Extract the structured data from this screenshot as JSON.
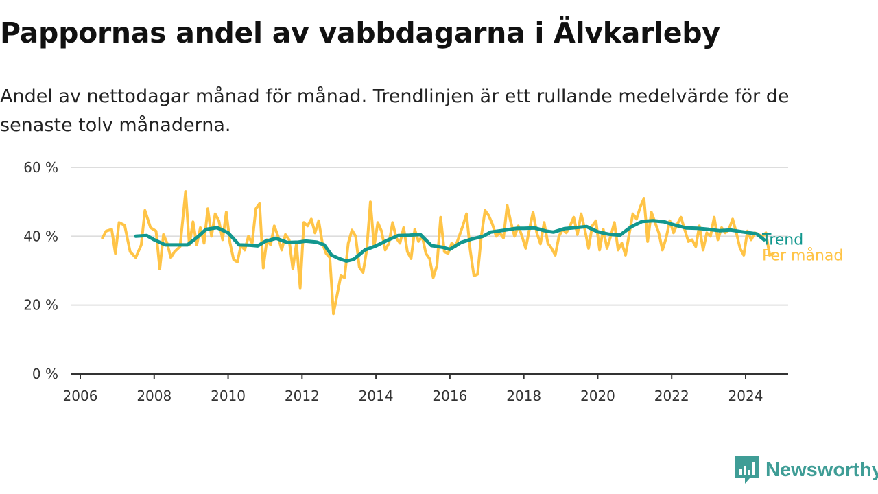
{
  "title": "Pappornas andel av vabbdagarna i Älvkarleby",
  "subtitle": "Andel av nettodagar månad för månad. Trendlinjen är ett rullande medelvärde för de senaste tolv månaderna.",
  "brand": {
    "name": "Newsworthy",
    "color": "#3f9d96"
  },
  "chart_data": {
    "type": "line",
    "title": "Pappornas andel av vabbdagarna i Älvkarleby",
    "xlabel": "",
    "ylabel": "",
    "x_range": [
      2006.0,
      2025.2
    ],
    "ylim": [
      0,
      60
    ],
    "y_ticks": [
      0,
      20,
      40,
      60
    ],
    "y_tick_labels": [
      "0 %",
      "20 %",
      "40 %",
      "60 %"
    ],
    "x_ticks": [
      2006,
      2008,
      2010,
      2012,
      2014,
      2016,
      2018,
      2020,
      2022,
      2024
    ],
    "x_tick_labels": [
      "2006",
      "2008",
      "2010",
      "2012",
      "2014",
      "2016",
      "2018",
      "2020",
      "2022",
      "2024"
    ],
    "grid": true,
    "legend": "end-of-line labels, right",
    "series": [
      {
        "name": "Trend",
        "color": "#12978e",
        "points": [
          [
            2007.5,
            40
          ],
          [
            2007.8,
            40.2
          ],
          [
            2008.0,
            39
          ],
          [
            2008.3,
            37.5
          ],
          [
            2008.6,
            37.5
          ],
          [
            2008.9,
            37.5
          ],
          [
            2009.2,
            40
          ],
          [
            2009.4,
            42
          ],
          [
            2009.7,
            42.5
          ],
          [
            2010.0,
            41
          ],
          [
            2010.3,
            37.5
          ],
          [
            2010.6,
            37.4
          ],
          [
            2010.8,
            37.2
          ],
          [
            2011.0,
            38.5
          ],
          [
            2011.3,
            39.4
          ],
          [
            2011.6,
            38.2
          ],
          [
            2011.9,
            38.3
          ],
          [
            2012.1,
            38.6
          ],
          [
            2012.4,
            38.3
          ],
          [
            2012.6,
            37.5
          ],
          [
            2012.8,
            34.5
          ],
          [
            2013.0,
            33.5
          ],
          [
            2013.2,
            32.8
          ],
          [
            2013.4,
            33.3
          ],
          [
            2013.7,
            36
          ],
          [
            2014.0,
            37.2
          ],
          [
            2014.3,
            38.8
          ],
          [
            2014.6,
            40.2
          ],
          [
            2014.9,
            40.3
          ],
          [
            2015.2,
            40.5
          ],
          [
            2015.5,
            37.3
          ],
          [
            2015.8,
            36.8
          ],
          [
            2016.0,
            36.2
          ],
          [
            2016.3,
            38.2
          ],
          [
            2016.6,
            39.2
          ],
          [
            2016.9,
            40
          ],
          [
            2017.1,
            41.2
          ],
          [
            2017.5,
            41.8
          ],
          [
            2017.8,
            42.3
          ],
          [
            2018.0,
            42.3
          ],
          [
            2018.3,
            42.4
          ],
          [
            2018.6,
            41.5
          ],
          [
            2018.8,
            41.2
          ],
          [
            2019.1,
            42.2
          ],
          [
            2019.4,
            42.5
          ],
          [
            2019.7,
            42.8
          ],
          [
            2020.0,
            41.3
          ],
          [
            2020.3,
            40.6
          ],
          [
            2020.6,
            40.3
          ],
          [
            2020.9,
            42.7
          ],
          [
            2021.2,
            44.3
          ],
          [
            2021.5,
            44.5
          ],
          [
            2021.8,
            44.2
          ],
          [
            2022.1,
            43.2
          ],
          [
            2022.4,
            42.4
          ],
          [
            2022.7,
            42.3
          ],
          [
            2023.0,
            42
          ],
          [
            2023.3,
            41.6
          ],
          [
            2023.6,
            41.8
          ],
          [
            2023.9,
            41.3
          ],
          [
            2024.1,
            41
          ],
          [
            2024.3,
            40.7
          ],
          [
            2024.5,
            39
          ]
        ]
      },
      {
        "name": "Per månad",
        "color": "#ffc447",
        "points": [
          [
            2006.6,
            39.5
          ],
          [
            2006.7,
            41.5
          ],
          [
            2006.85,
            42
          ],
          [
            2006.95,
            35
          ],
          [
            2007.05,
            44
          ],
          [
            2007.2,
            43.2
          ],
          [
            2007.35,
            35.5
          ],
          [
            2007.5,
            33.8
          ],
          [
            2007.65,
            37.5
          ],
          [
            2007.75,
            47.5
          ],
          [
            2007.9,
            42.5
          ],
          [
            2008.05,
            41.5
          ],
          [
            2008.15,
            30.5
          ],
          [
            2008.25,
            40.5
          ],
          [
            2008.35,
            38
          ],
          [
            2008.45,
            33.8
          ],
          [
            2008.55,
            35.5
          ],
          [
            2008.7,
            37
          ],
          [
            2008.85,
            53
          ],
          [
            2008.95,
            37.5
          ],
          [
            2009.05,
            44.2
          ],
          [
            2009.15,
            37.5
          ],
          [
            2009.25,
            42.5
          ],
          [
            2009.35,
            38
          ],
          [
            2009.45,
            48
          ],
          [
            2009.55,
            40
          ],
          [
            2009.65,
            46.5
          ],
          [
            2009.75,
            44.5
          ],
          [
            2009.85,
            39
          ],
          [
            2009.95,
            47
          ],
          [
            2010.05,
            38.2
          ],
          [
            2010.15,
            33.2
          ],
          [
            2010.25,
            32.5
          ],
          [
            2010.35,
            37.5
          ],
          [
            2010.45,
            36
          ],
          [
            2010.55,
            40
          ],
          [
            2010.65,
            38
          ],
          [
            2010.75,
            48
          ],
          [
            2010.85,
            49.5
          ],
          [
            2010.95,
            30.8
          ],
          [
            2011.05,
            39
          ],
          [
            2011.15,
            37.5
          ],
          [
            2011.25,
            43
          ],
          [
            2011.35,
            40
          ],
          [
            2011.45,
            36
          ],
          [
            2011.55,
            40.5
          ],
          [
            2011.65,
            39
          ],
          [
            2011.75,
            30.5
          ],
          [
            2011.85,
            38
          ],
          [
            2011.95,
            25
          ],
          [
            2012.05,
            44
          ],
          [
            2012.15,
            43
          ],
          [
            2012.25,
            45
          ],
          [
            2012.35,
            41
          ],
          [
            2012.45,
            44.5
          ],
          [
            2012.55,
            38
          ],
          [
            2012.65,
            35
          ],
          [
            2012.75,
            33.8
          ],
          [
            2012.85,
            17.5
          ],
          [
            2012.95,
            23
          ],
          [
            2013.05,
            28.5
          ],
          [
            2013.15,
            28
          ],
          [
            2013.25,
            38
          ],
          [
            2013.35,
            41.8
          ],
          [
            2013.45,
            40
          ],
          [
            2013.55,
            31
          ],
          [
            2013.65,
            29.5
          ],
          [
            2013.75,
            36
          ],
          [
            2013.85,
            50
          ],
          [
            2013.95,
            37
          ],
          [
            2014.05,
            44
          ],
          [
            2014.15,
            41.5
          ],
          [
            2014.25,
            36
          ],
          [
            2014.35,
            38
          ],
          [
            2014.45,
            44
          ],
          [
            2014.55,
            39.5
          ],
          [
            2014.65,
            38
          ],
          [
            2014.75,
            42.5
          ],
          [
            2014.85,
            35.5
          ],
          [
            2014.95,
            33.5
          ],
          [
            2015.05,
            42
          ],
          [
            2015.15,
            38.5
          ],
          [
            2015.25,
            40
          ],
          [
            2015.35,
            35
          ],
          [
            2015.45,
            33.5
          ],
          [
            2015.55,
            28
          ],
          [
            2015.65,
            31.5
          ],
          [
            2015.75,
            45.5
          ],
          [
            2015.85,
            35.5
          ],
          [
            2015.95,
            35
          ],
          [
            2016.05,
            38
          ],
          [
            2016.15,
            37
          ],
          [
            2016.25,
            40
          ],
          [
            2016.35,
            43
          ],
          [
            2016.45,
            46.5
          ],
          [
            2016.55,
            36
          ],
          [
            2016.65,
            28.5
          ],
          [
            2016.75,
            29
          ],
          [
            2016.85,
            40
          ],
          [
            2016.95,
            47.5
          ],
          [
            2017.05,
            46
          ],
          [
            2017.15,
            43.5
          ],
          [
            2017.25,
            40
          ],
          [
            2017.35,
            41
          ],
          [
            2017.45,
            39.5
          ],
          [
            2017.55,
            49
          ],
          [
            2017.65,
            44
          ],
          [
            2017.75,
            40
          ],
          [
            2017.85,
            43
          ],
          [
            2017.95,
            40
          ],
          [
            2018.05,
            36.5
          ],
          [
            2018.15,
            42
          ],
          [
            2018.25,
            47
          ],
          [
            2018.35,
            41
          ],
          [
            2018.45,
            37.8
          ],
          [
            2018.55,
            44
          ],
          [
            2018.65,
            38
          ],
          [
            2018.75,
            36.5
          ],
          [
            2018.85,
            34.5
          ],
          [
            2018.95,
            40
          ],
          [
            2019.05,
            42
          ],
          [
            2019.15,
            41
          ],
          [
            2019.25,
            43
          ],
          [
            2019.35,
            45.5
          ],
          [
            2019.45,
            40.5
          ],
          [
            2019.55,
            46.5
          ],
          [
            2019.65,
            42
          ],
          [
            2019.75,
            36.5
          ],
          [
            2019.85,
            43
          ],
          [
            2019.95,
            44.5
          ],
          [
            2020.05,
            36
          ],
          [
            2020.15,
            42
          ],
          [
            2020.25,
            36.5
          ],
          [
            2020.35,
            40
          ],
          [
            2020.45,
            44
          ],
          [
            2020.55,
            36
          ],
          [
            2020.65,
            38
          ],
          [
            2020.75,
            34.5
          ],
          [
            2020.85,
            40.5
          ],
          [
            2020.95,
            46.5
          ],
          [
            2021.05,
            45
          ],
          [
            2021.15,
            48.5
          ],
          [
            2021.25,
            51
          ],
          [
            2021.35,
            38.5
          ],
          [
            2021.45,
            47
          ],
          [
            2021.55,
            44
          ],
          [
            2021.65,
            41
          ],
          [
            2021.75,
            36
          ],
          [
            2021.85,
            39.5
          ],
          [
            2021.95,
            44.5
          ],
          [
            2022.05,
            41
          ],
          [
            2022.15,
            43.5
          ],
          [
            2022.25,
            45.5
          ],
          [
            2022.35,
            42
          ],
          [
            2022.45,
            38.5
          ],
          [
            2022.55,
            39
          ],
          [
            2022.65,
            37
          ],
          [
            2022.75,
            43
          ],
          [
            2022.85,
            36
          ],
          [
            2022.95,
            41
          ],
          [
            2023.05,
            40
          ],
          [
            2023.15,
            45.5
          ],
          [
            2023.25,
            39
          ],
          [
            2023.35,
            42.5
          ],
          [
            2023.45,
            41
          ],
          [
            2023.55,
            42
          ],
          [
            2023.65,
            45
          ],
          [
            2023.75,
            41
          ],
          [
            2023.85,
            36.5
          ],
          [
            2023.95,
            34.5
          ],
          [
            2024.05,
            41.5
          ],
          [
            2024.15,
            39
          ],
          [
            2024.25,
            41
          ],
          [
            2024.35,
            40.5
          ],
          [
            2024.45,
            40
          ],
          [
            2024.55,
            41
          ],
          [
            2024.65,
            34.5
          ],
          [
            2024.75,
            35
          ]
        ]
      }
    ]
  }
}
